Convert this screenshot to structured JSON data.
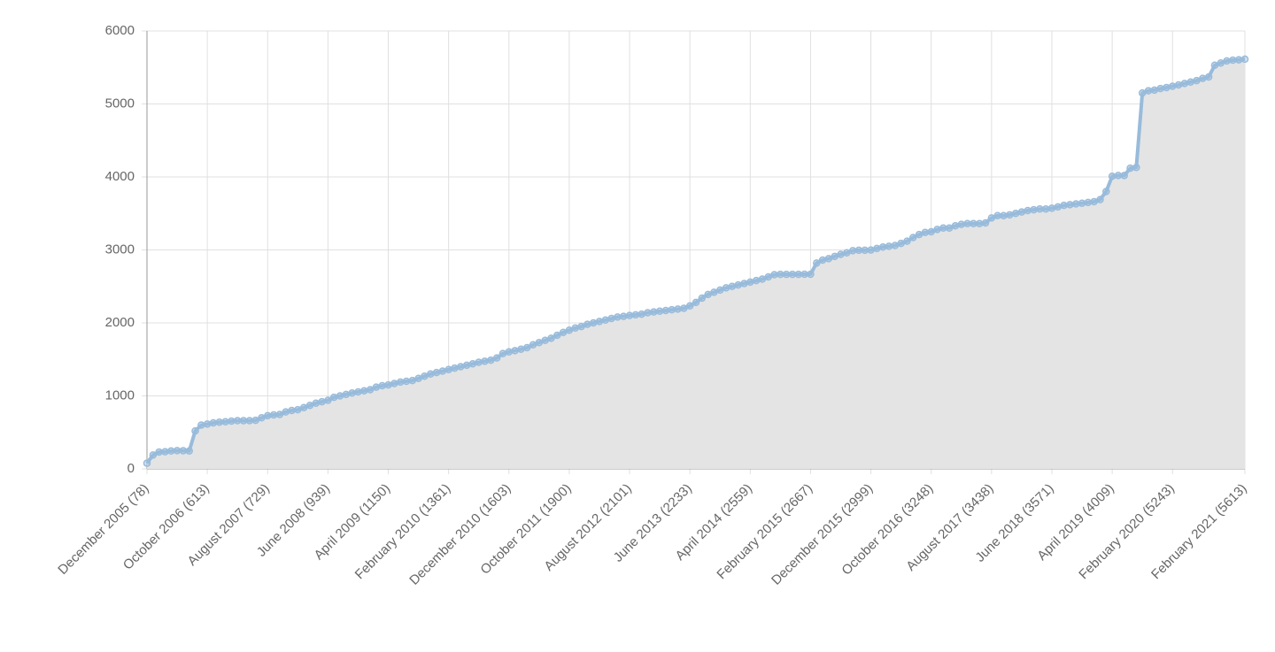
{
  "chart_data": {
    "type": "line",
    "categories": [
      "December 2005 (78)",
      null,
      null,
      null,
      null,
      null,
      null,
      null,
      null,
      null,
      "October 2006 (613)",
      null,
      null,
      null,
      null,
      null,
      null,
      null,
      null,
      null,
      "August 2007 (729)",
      null,
      null,
      null,
      null,
      null,
      null,
      null,
      null,
      null,
      "June 2008 (939)",
      null,
      null,
      null,
      null,
      null,
      null,
      null,
      null,
      null,
      "April 2009 (1150)",
      null,
      null,
      null,
      null,
      null,
      null,
      null,
      null,
      null,
      "February 2010 (1361)",
      null,
      null,
      null,
      null,
      null,
      null,
      null,
      null,
      null,
      "December 2010 (1603)",
      null,
      null,
      null,
      null,
      null,
      null,
      null,
      null,
      null,
      "October 2011 (1900)",
      null,
      null,
      null,
      null,
      null,
      null,
      null,
      null,
      null,
      "August 2012 (2101)",
      null,
      null,
      null,
      null,
      null,
      null,
      null,
      null,
      null,
      "June 2013 (2233)",
      null,
      null,
      null,
      null,
      null,
      null,
      null,
      null,
      null,
      "April 2014 (2559)",
      null,
      null,
      null,
      null,
      null,
      null,
      null,
      null,
      null,
      "February 2015 (2667)",
      null,
      null,
      null,
      null,
      null,
      null,
      null,
      null,
      null,
      "December 2015 (2999)",
      null,
      null,
      null,
      null,
      null,
      null,
      null,
      null,
      null,
      "October 2016 (3248)",
      null,
      null,
      null,
      null,
      null,
      null,
      null,
      null,
      null,
      "August 2017 (3438)",
      null,
      null,
      null,
      null,
      null,
      null,
      null,
      null,
      null,
      "June 2018 (3571)",
      null,
      null,
      null,
      null,
      null,
      null,
      null,
      null,
      null,
      "April 2019 (4009)",
      null,
      null,
      null,
      null,
      null,
      null,
      null,
      null,
      null,
      "February 2020 (5243)",
      null,
      null,
      null,
      null,
      null,
      null,
      null,
      null,
      null,
      null,
      null,
      "February 2021 (5613)"
    ],
    "values": [
      78,
      190,
      230,
      235,
      245,
      250,
      248,
      245,
      520,
      600,
      613,
      630,
      640,
      645,
      655,
      660,
      660,
      660,
      665,
      700,
      729,
      740,
      745,
      780,
      800,
      810,
      840,
      870,
      900,
      920,
      939,
      980,
      1000,
      1020,
      1040,
      1055,
      1070,
      1085,
      1120,
      1140,
      1150,
      1170,
      1190,
      1200,
      1210,
      1240,
      1270,
      1300,
      1320,
      1340,
      1361,
      1380,
      1400,
      1420,
      1440,
      1460,
      1475,
      1490,
      1520,
      1580,
      1603,
      1620,
      1640,
      1660,
      1700,
      1730,
      1760,
      1790,
      1830,
      1870,
      1900,
      1930,
      1950,
      1980,
      2000,
      2020,
      2040,
      2060,
      2080,
      2090,
      2101,
      2110,
      2120,
      2140,
      2150,
      2160,
      2170,
      2180,
      2190,
      2200,
      2233,
      2280,
      2340,
      2390,
      2420,
      2450,
      2480,
      2500,
      2520,
      2540,
      2559,
      2580,
      2600,
      2630,
      2660,
      2665,
      2665,
      2665,
      2665,
      2667,
      2667,
      2820,
      2860,
      2880,
      2910,
      2940,
      2960,
      2990,
      2995,
      2995,
      2999,
      3020,
      3040,
      3050,
      3060,
      3090,
      3120,
      3170,
      3210,
      3240,
      3248,
      3280,
      3300,
      3300,
      3330,
      3350,
      3360,
      3360,
      3360,
      3370,
      3438,
      3470,
      3470,
      3480,
      3500,
      3520,
      3540,
      3550,
      3560,
      3560,
      3571,
      3590,
      3610,
      3620,
      3630,
      3640,
      3650,
      3660,
      3690,
      3800,
      4009,
      4020,
      4020,
      4120,
      4130,
      5150,
      5180,
      5190,
      5210,
      5225,
      5243,
      5260,
      5280,
      5300,
      5320,
      5350,
      5370,
      5530,
      5560,
      5590,
      5600,
      5605,
      5613
    ],
    "color": "#98bbdb",
    "fill": "#e4e4e4",
    "ylim": [
      0,
      6000
    ],
    "yticks": [
      0,
      1000,
      2000,
      3000,
      4000,
      5000,
      6000
    ],
    "grid": true
  }
}
